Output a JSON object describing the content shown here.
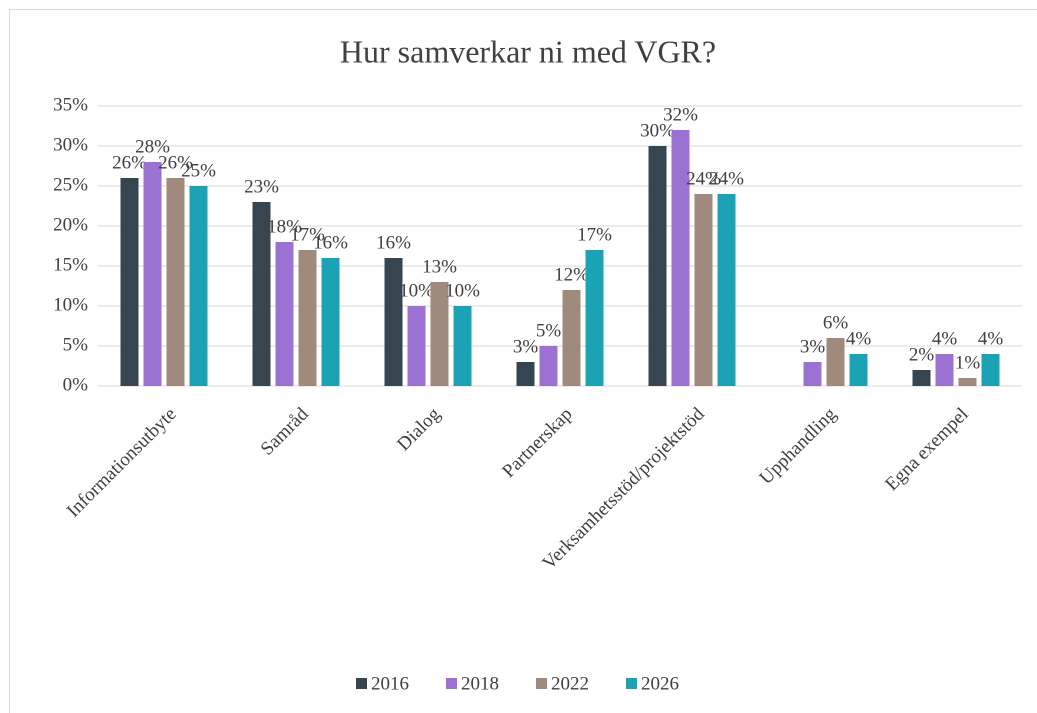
{
  "chart_data": {
    "type": "bar",
    "title": "Hur samverkar ni med VGR?",
    "categories": [
      "Informationsutbyte",
      "Samråd",
      "Dialog",
      "Partnerskap",
      "Verksamhetsstöd/projektstöd",
      "Upphandling",
      "Egna exempel"
    ],
    "series": [
      {
        "name": "2016",
        "color": "#36454f",
        "values": [
          26,
          23,
          16,
          3,
          30,
          null,
          2
        ],
        "value_labels": [
          "26%",
          "23%",
          "16%",
          "3%",
          "30%",
          null,
          "2%"
        ]
      },
      {
        "name": "2018",
        "color": "#9b72d4",
        "values": [
          28,
          18,
          10,
          5,
          32,
          3,
          4
        ],
        "value_labels": [
          "28%",
          "18%",
          "10%",
          "5%",
          "32%",
          "3%",
          "4%"
        ]
      },
      {
        "name": "2022",
        "color": "#a08a7e",
        "values": [
          26,
          17,
          13,
          12,
          24,
          6,
          1
        ],
        "value_labels": [
          "26%",
          "17%",
          "13%",
          "12%",
          "24%",
          "6%",
          "1%"
        ]
      },
      {
        "name": "2026",
        "color": "#1ba3b5",
        "values": [
          25,
          16,
          10,
          17,
          24,
          4,
          4
        ],
        "value_labels": [
          "25%",
          "16%",
          "10%",
          "17%",
          "24%",
          "4%",
          "4%"
        ]
      }
    ],
    "ylim": [
      0,
      35
    ],
    "yticks": [
      {
        "value": 0,
        "label": "0%"
      },
      {
        "value": 5,
        "label": "5%"
      },
      {
        "value": 10,
        "label": "10%"
      },
      {
        "value": 15,
        "label": "15%"
      },
      {
        "value": 20,
        "label": "20%"
      },
      {
        "value": 25,
        "label": "25%"
      },
      {
        "value": 30,
        "label": "30%"
      },
      {
        "value": 35,
        "label": "35%"
      }
    ],
    "grid": true,
    "legend": "bottom"
  }
}
